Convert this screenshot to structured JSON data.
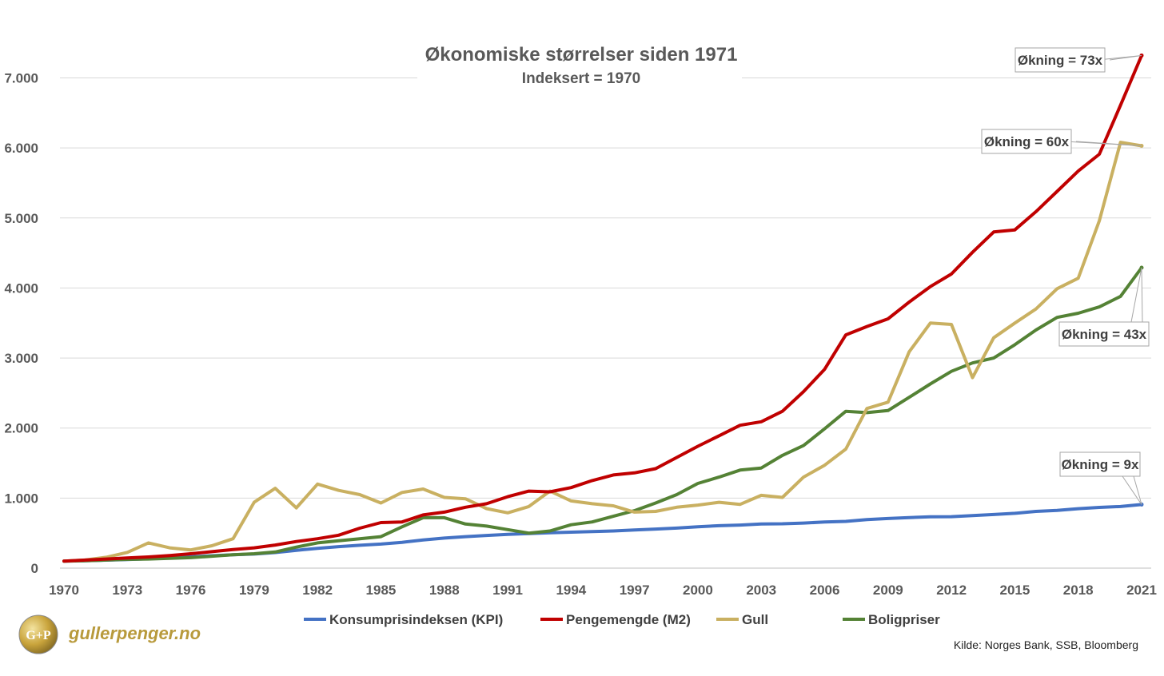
{
  "chart_data": {
    "type": "line",
    "title": "Økonomiske størrelser siden 1971",
    "subtitle": "Indeksert = 1970",
    "x": [
      1970,
      1971,
      1972,
      1973,
      1974,
      1975,
      1976,
      1977,
      1978,
      1979,
      1980,
      1981,
      1982,
      1983,
      1984,
      1985,
      1986,
      1987,
      1988,
      1989,
      1990,
      1991,
      1992,
      1993,
      1994,
      1995,
      1996,
      1997,
      1998,
      1999,
      2000,
      2001,
      2002,
      2003,
      2004,
      2005,
      2006,
      2007,
      2008,
      2009,
      2010,
      2011,
      2012,
      2013,
      2014,
      2015,
      2016,
      2017,
      2018,
      2019,
      2020,
      2021
    ],
    "x_tick_labels": [
      "1970",
      "1973",
      "1976",
      "1979",
      "1982",
      "1985",
      "1988",
      "1991",
      "1994",
      "1997",
      "2000",
      "2003",
      "2006",
      "2009",
      "2012",
      "2015",
      "2018",
      "2021"
    ],
    "y_tick_labels": [
      "0",
      "1.000",
      "2.000",
      "3.000",
      "4.000",
      "5.000",
      "6.000",
      "7.000"
    ],
    "ylim": [
      0,
      7500
    ],
    "grid": true,
    "legend_position": "bottom",
    "series": [
      {
        "name": "Konsumprisindeksen (KPI)",
        "color": "#4472c4",
        "values": [
          100,
          106,
          114,
          122,
          133,
          148,
          162,
          177,
          192,
          201,
          223,
          254,
          283,
          307,
          326,
          344,
          368,
          402,
          429,
          449,
          467,
          483,
          494,
          506,
          513,
          522,
          530,
          545,
          558,
          572,
          591,
          606,
          615,
          630,
          633,
          643,
          658,
          668,
          694,
          709,
          722,
          733,
          735,
          751,
          766,
          783,
          810,
          825,
          849,
          867,
          880,
          908
        ]
      },
      {
        "name": "Pengemengde (M2)",
        "color": "#c00000",
        "values": [
          100,
          115,
          130,
          145,
          160,
          180,
          205,
          235,
          265,
          290,
          330,
          380,
          420,
          470,
          570,
          650,
          660,
          760,
          800,
          870,
          920,
          1020,
          1100,
          1090,
          1150,
          1250,
          1330,
          1360,
          1420,
          1580,
          1740,
          1890,
          2040,
          2090,
          2240,
          2520,
          2840,
          3330,
          3450,
          3560,
          3800,
          4020,
          4200,
          4510,
          4800,
          4830,
          5090,
          5380,
          5670,
          5910,
          6610,
          7320
        ]
      },
      {
        "name": "Gull",
        "color": "#c9b061",
        "values": [
          100,
          115,
          155,
          225,
          360,
          290,
          260,
          320,
          420,
          940,
          1140,
          860,
          1200,
          1110,
          1050,
          930,
          1080,
          1130,
          1010,
          990,
          850,
          790,
          880,
          1100,
          960,
          920,
          890,
          800,
          810,
          870,
          900,
          940,
          910,
          1040,
          1010,
          1300,
          1470,
          1700,
          2280,
          2370,
          3090,
          3500,
          3480,
          2720,
          3290,
          3500,
          3700,
          3990,
          4140,
          4960,
          6080,
          6030
        ]
      },
      {
        "name": "Boligpriser",
        "color": "#548235",
        "values": [
          100,
          105,
          115,
          125,
          130,
          140,
          150,
          170,
          190,
          205,
          230,
          300,
          360,
          390,
          420,
          450,
          590,
          720,
          720,
          630,
          600,
          550,
          500,
          530,
          620,
          660,
          740,
          820,
          930,
          1050,
          1210,
          1300,
          1400,
          1430,
          1610,
          1750,
          1990,
          2240,
          2220,
          2250,
          2440,
          2630,
          2810,
          2930,
          3000,
          3190,
          3400,
          3580,
          3640,
          3730,
          3880,
          4290
        ]
      }
    ],
    "annotations": [
      {
        "text": "Økning = 73x",
        "series": "Pengemengde (M2)",
        "year": 2021
      },
      {
        "text": "Økning = 60x",
        "series": "Gull",
        "year": 2021
      },
      {
        "text": "Økning = 43x",
        "series": "Boligpriser",
        "year": 2021
      },
      {
        "text": "Økning = 9x",
        "series": "Konsumprisindeksen (KPI)",
        "year": 2021
      }
    ]
  },
  "source": "Kilde: Norges Bank, SSB, Bloomberg",
  "brand": {
    "name": "gullerpenger.no",
    "logo_text": "G+P"
  }
}
